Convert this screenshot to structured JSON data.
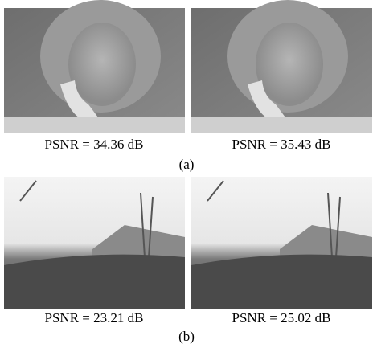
{
  "figures": [
    {
      "label": "(a)",
      "panels": [
        {
          "caption": "PSNR = 34.36 dB"
        },
        {
          "caption": "PSNR = 35.43 dB"
        }
      ]
    },
    {
      "label": "(b)",
      "panels": [
        {
          "caption": "PSNR = 23.21 dB"
        },
        {
          "caption": "PSNR = 25.02 dB"
        }
      ]
    }
  ]
}
